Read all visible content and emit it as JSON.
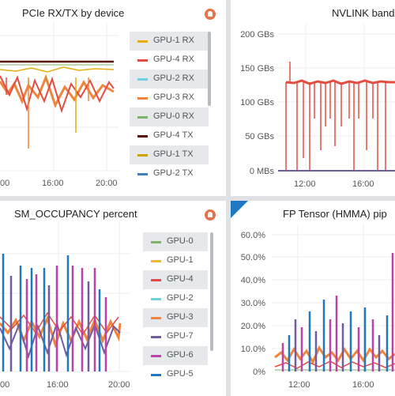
{
  "panels": {
    "pcie": {
      "title": "PCIe RX/TX by device",
      "x_ticks": [
        "00",
        "16:00",
        "20:00"
      ],
      "legend": [
        {
          "label": "GPU-1 RX",
          "color": "#e5ac0e"
        },
        {
          "label": "GPU-4 RX",
          "color": "#e24d42"
        },
        {
          "label": "GPU-2 RX",
          "color": "#6ed0e0"
        },
        {
          "label": "GPU-3 RX",
          "color": "#ef843c"
        },
        {
          "label": "GPU-0 RX",
          "color": "#7eb26d"
        },
        {
          "label": "GPU-4 TX",
          "color": "#58140c"
        },
        {
          "label": "GPU-1 TX",
          "color": "#cca300"
        },
        {
          "label": "GPU-2 TX",
          "color": "#447ebc"
        }
      ]
    },
    "nvlink": {
      "title": "NVLINK band",
      "y_ticks": [
        "200 GBs",
        "150 GBs",
        "100 GBs",
        "50 GBs",
        "0 MBs"
      ],
      "x_ticks": [
        "12:00",
        "16:00"
      ]
    },
    "sm": {
      "title": "SM_OCCUPANCY percent",
      "x_ticks": [
        "00",
        "16:00",
        "20:00"
      ],
      "legend": [
        {
          "label": "GPU-0",
          "color": "#7eb26d"
        },
        {
          "label": "GPU-1",
          "color": "#eab839"
        },
        {
          "label": "GPU-4",
          "color": "#e24d42"
        },
        {
          "label": "GPU-2",
          "color": "#6ed0e0"
        },
        {
          "label": "GPU-3",
          "color": "#ef843c"
        },
        {
          "label": "GPU-7",
          "color": "#705da0"
        },
        {
          "label": "GPU-6",
          "color": "#ba43a9"
        },
        {
          "label": "GPU-5",
          "color": "#1f78c1"
        }
      ]
    },
    "fp": {
      "title": "FP Tensor (HMMA) pip",
      "y_ticks": [
        "60.0%",
        "50.0%",
        "40.0%",
        "30.0%",
        "20.0%",
        "10.0%",
        "0%"
      ],
      "x_ticks": [
        "12:00",
        "16:00"
      ]
    }
  },
  "colors": {
    "background": "#dfe1e4",
    "panel": "#ffffff",
    "grid": "#e6e6e6",
    "alert": "#e5724a",
    "info": "#1f78c1"
  }
}
